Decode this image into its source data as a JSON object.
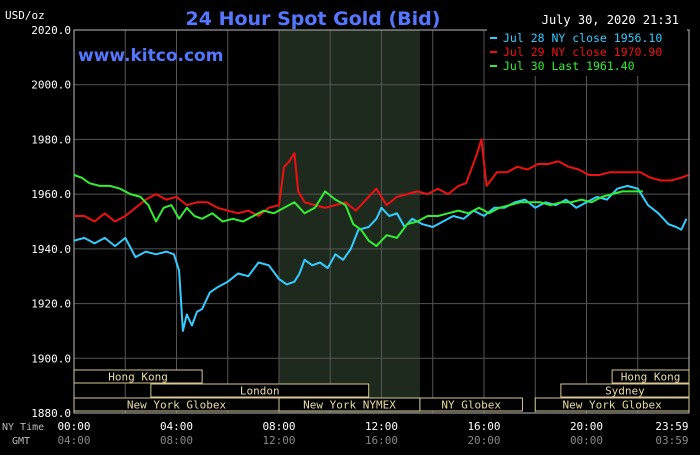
{
  "chart_data": {
    "type": "line",
    "title": "24 Hour Spot Gold (Bid)",
    "unit_label": "USD/oz",
    "watermark": "www.kitco.com",
    "timestamp": "July 30, 2020 21:31",
    "ylim": [
      1880,
      2020
    ],
    "yticks": [
      "2020.0",
      "2000.0",
      "1980.0",
      "1960.0",
      "1940.0",
      "1920.0",
      "1900.0",
      "1880.0"
    ],
    "ytick_values": [
      2020,
      2000,
      1980,
      1960,
      1940,
      1920,
      1900,
      1880
    ],
    "xlim": [
      0,
      24
    ],
    "xticks_ny": [
      "00:00",
      "04:00",
      "08:00",
      "12:00",
      "16:00",
      "20:00",
      "23:59"
    ],
    "xticks_gmt": [
      "04:00",
      "08:00",
      "12:00",
      "16:00",
      "20:00",
      "00:00",
      "03:59"
    ],
    "xtick_hours": [
      0,
      4,
      8,
      12,
      16,
      20,
      23.98
    ],
    "row_label_ny": "NY Time",
    "row_label_gmt": "GMT",
    "grid": true,
    "legend_placement": "top-right",
    "series": [
      {
        "name": "Jul 28 NY close 1956.10",
        "color": "#33ccff",
        "points": [
          [
            0,
            1943
          ],
          [
            0.4,
            1944
          ],
          [
            0.8,
            1942
          ],
          [
            1.2,
            1944
          ],
          [
            1.6,
            1941
          ],
          [
            2.0,
            1944
          ],
          [
            2.4,
            1937
          ],
          [
            2.8,
            1939
          ],
          [
            3.2,
            1938
          ],
          [
            3.6,
            1939
          ],
          [
            3.9,
            1938
          ],
          [
            4.1,
            1932
          ],
          [
            4.25,
            1910
          ],
          [
            4.4,
            1916
          ],
          [
            4.6,
            1912
          ],
          [
            4.8,
            1917
          ],
          [
            5.0,
            1918
          ],
          [
            5.3,
            1924
          ],
          [
            5.6,
            1926
          ],
          [
            6.0,
            1928
          ],
          [
            6.4,
            1931
          ],
          [
            6.8,
            1930
          ],
          [
            7.2,
            1935
          ],
          [
            7.6,
            1934
          ],
          [
            8.0,
            1929
          ],
          [
            8.3,
            1927
          ],
          [
            8.6,
            1928
          ],
          [
            8.8,
            1931
          ],
          [
            9.0,
            1936
          ],
          [
            9.3,
            1934
          ],
          [
            9.6,
            1935
          ],
          [
            9.9,
            1933
          ],
          [
            10.2,
            1938
          ],
          [
            10.5,
            1936
          ],
          [
            10.8,
            1940
          ],
          [
            11.1,
            1947
          ],
          [
            11.5,
            1948
          ],
          [
            11.8,
            1951
          ],
          [
            12.0,
            1955
          ],
          [
            12.3,
            1952
          ],
          [
            12.6,
            1953
          ],
          [
            12.9,
            1948
          ],
          [
            13.2,
            1951
          ],
          [
            13.6,
            1949
          ],
          [
            14.0,
            1948
          ],
          [
            14.4,
            1950
          ],
          [
            14.8,
            1952
          ],
          [
            15.2,
            1951
          ],
          [
            15.6,
            1954
          ],
          [
            16.0,
            1952
          ],
          [
            16.4,
            1955
          ],
          [
            16.8,
            1955
          ],
          [
            17.2,
            1957
          ],
          [
            17.6,
            1958
          ],
          [
            18.0,
            1955
          ],
          [
            18.4,
            1957
          ],
          [
            18.8,
            1956
          ],
          [
            19.2,
            1958
          ],
          [
            19.6,
            1955
          ],
          [
            20.0,
            1957
          ],
          [
            20.4,
            1959
          ],
          [
            20.8,
            1958
          ],
          [
            21.2,
            1962
          ],
          [
            21.6,
            1963
          ],
          [
            22.0,
            1962
          ],
          [
            22.4,
            1956
          ],
          [
            22.8,
            1953
          ],
          [
            23.2,
            1949
          ],
          [
            23.5,
            1948
          ],
          [
            23.7,
            1947
          ],
          [
            23.9,
            1951
          ]
        ]
      },
      {
        "name": "Jul 29 NY close 1970.90",
        "color": "#ee1111",
        "points": [
          [
            0,
            1952
          ],
          [
            0.4,
            1952
          ],
          [
            0.8,
            1950
          ],
          [
            1.2,
            1953
          ],
          [
            1.6,
            1950
          ],
          [
            2.0,
            1952
          ],
          [
            2.4,
            1955
          ],
          [
            2.8,
            1958
          ],
          [
            3.2,
            1960
          ],
          [
            3.6,
            1958
          ],
          [
            4.0,
            1959
          ],
          [
            4.4,
            1956
          ],
          [
            4.8,
            1957
          ],
          [
            5.2,
            1957
          ],
          [
            5.6,
            1955
          ],
          [
            6.0,
            1954
          ],
          [
            6.4,
            1953
          ],
          [
            6.8,
            1954
          ],
          [
            7.2,
            1952
          ],
          [
            7.6,
            1955
          ],
          [
            8.0,
            1956
          ],
          [
            8.2,
            1970
          ],
          [
            8.4,
            1972
          ],
          [
            8.6,
            1975
          ],
          [
            8.75,
            1961
          ],
          [
            9.0,
            1957
          ],
          [
            9.4,
            1956
          ],
          [
            9.8,
            1955
          ],
          [
            10.2,
            1956
          ],
          [
            10.6,
            1957
          ],
          [
            11.0,
            1954
          ],
          [
            11.4,
            1958
          ],
          [
            11.8,
            1962
          ],
          [
            12.2,
            1956
          ],
          [
            12.6,
            1959
          ],
          [
            13.0,
            1960
          ],
          [
            13.4,
            1961
          ],
          [
            13.8,
            1960
          ],
          [
            14.2,
            1962
          ],
          [
            14.6,
            1960
          ],
          [
            15.0,
            1963
          ],
          [
            15.3,
            1964
          ],
          [
            15.7,
            1974
          ],
          [
            15.9,
            1980
          ],
          [
            16.1,
            1963
          ],
          [
            16.5,
            1968
          ],
          [
            16.9,
            1968
          ],
          [
            17.3,
            1970
          ],
          [
            17.7,
            1969
          ],
          [
            18.1,
            1971
          ],
          [
            18.5,
            1971
          ],
          [
            18.9,
            1972
          ],
          [
            19.3,
            1970
          ],
          [
            19.7,
            1969
          ],
          [
            20.1,
            1967
          ],
          [
            20.5,
            1967
          ],
          [
            20.9,
            1968
          ],
          [
            21.3,
            1968
          ],
          [
            21.7,
            1968
          ],
          [
            22.1,
            1968
          ],
          [
            22.5,
            1966
          ],
          [
            22.9,
            1965
          ],
          [
            23.3,
            1965
          ],
          [
            23.7,
            1966
          ],
          [
            23.98,
            1967
          ]
        ]
      },
      {
        "name": "Jul 30 Last 1961.40",
        "color": "#33ee33",
        "points": [
          [
            0,
            1967
          ],
          [
            0.3,
            1966
          ],
          [
            0.6,
            1964
          ],
          [
            1.0,
            1963
          ],
          [
            1.4,
            1963
          ],
          [
            1.8,
            1962
          ],
          [
            2.2,
            1960
          ],
          [
            2.6,
            1959
          ],
          [
            2.9,
            1956
          ],
          [
            3.2,
            1950
          ],
          [
            3.5,
            1955
          ],
          [
            3.8,
            1956
          ],
          [
            4.1,
            1951
          ],
          [
            4.4,
            1955
          ],
          [
            4.7,
            1952
          ],
          [
            5.0,
            1951
          ],
          [
            5.4,
            1953
          ],
          [
            5.8,
            1950
          ],
          [
            6.2,
            1951
          ],
          [
            6.6,
            1950
          ],
          [
            7.0,
            1952
          ],
          [
            7.4,
            1954
          ],
          [
            7.8,
            1953
          ],
          [
            8.2,
            1955
          ],
          [
            8.6,
            1957
          ],
          [
            9.0,
            1953
          ],
          [
            9.4,
            1955
          ],
          [
            9.8,
            1961
          ],
          [
            10.2,
            1958
          ],
          [
            10.6,
            1956
          ],
          [
            10.9,
            1949
          ],
          [
            11.2,
            1947
          ],
          [
            11.5,
            1943
          ],
          [
            11.8,
            1941
          ],
          [
            12.2,
            1945
          ],
          [
            12.6,
            1944
          ],
          [
            13.0,
            1949
          ],
          [
            13.4,
            1950
          ],
          [
            13.8,
            1952
          ],
          [
            14.2,
            1952
          ],
          [
            14.6,
            1953
          ],
          [
            15.0,
            1954
          ],
          [
            15.4,
            1953
          ],
          [
            15.8,
            1955
          ],
          [
            16.2,
            1953
          ],
          [
            16.6,
            1955
          ],
          [
            17.0,
            1956
          ],
          [
            17.4,
            1957
          ],
          [
            17.8,
            1957
          ],
          [
            18.2,
            1957
          ],
          [
            18.6,
            1956
          ],
          [
            19.0,
            1957
          ],
          [
            19.4,
            1957
          ],
          [
            19.8,
            1958
          ],
          [
            20.2,
            1957
          ],
          [
            20.6,
            1959
          ],
          [
            21.0,
            1960
          ],
          [
            21.4,
            1961
          ],
          [
            21.8,
            1961
          ],
          [
            22.2,
            1961
          ]
        ]
      }
    ],
    "sessions": [
      {
        "label": "Hong Kong",
        "start": 0,
        "end": 5,
        "row": 1
      },
      {
        "label": "Hong Kong",
        "start": 21,
        "end": 24,
        "row": 1
      },
      {
        "label": "London",
        "start": 3,
        "end": 11.5,
        "row": 2
      },
      {
        "label": "Sydney",
        "start": 19,
        "end": 24,
        "row": 2
      },
      {
        "label": "New York Globex",
        "start": 0,
        "end": 8,
        "row": 3
      },
      {
        "label": "New York NYMEX",
        "start": 8,
        "end": 13.5,
        "row": 3
      },
      {
        "label": "NY Globex",
        "start": 13.5,
        "end": 17.5,
        "row": 3
      },
      {
        "label": "New York Globex",
        "start": 18,
        "end": 24,
        "row": 3
      }
    ],
    "highlight_band": [
      8,
      13.5
    ]
  }
}
